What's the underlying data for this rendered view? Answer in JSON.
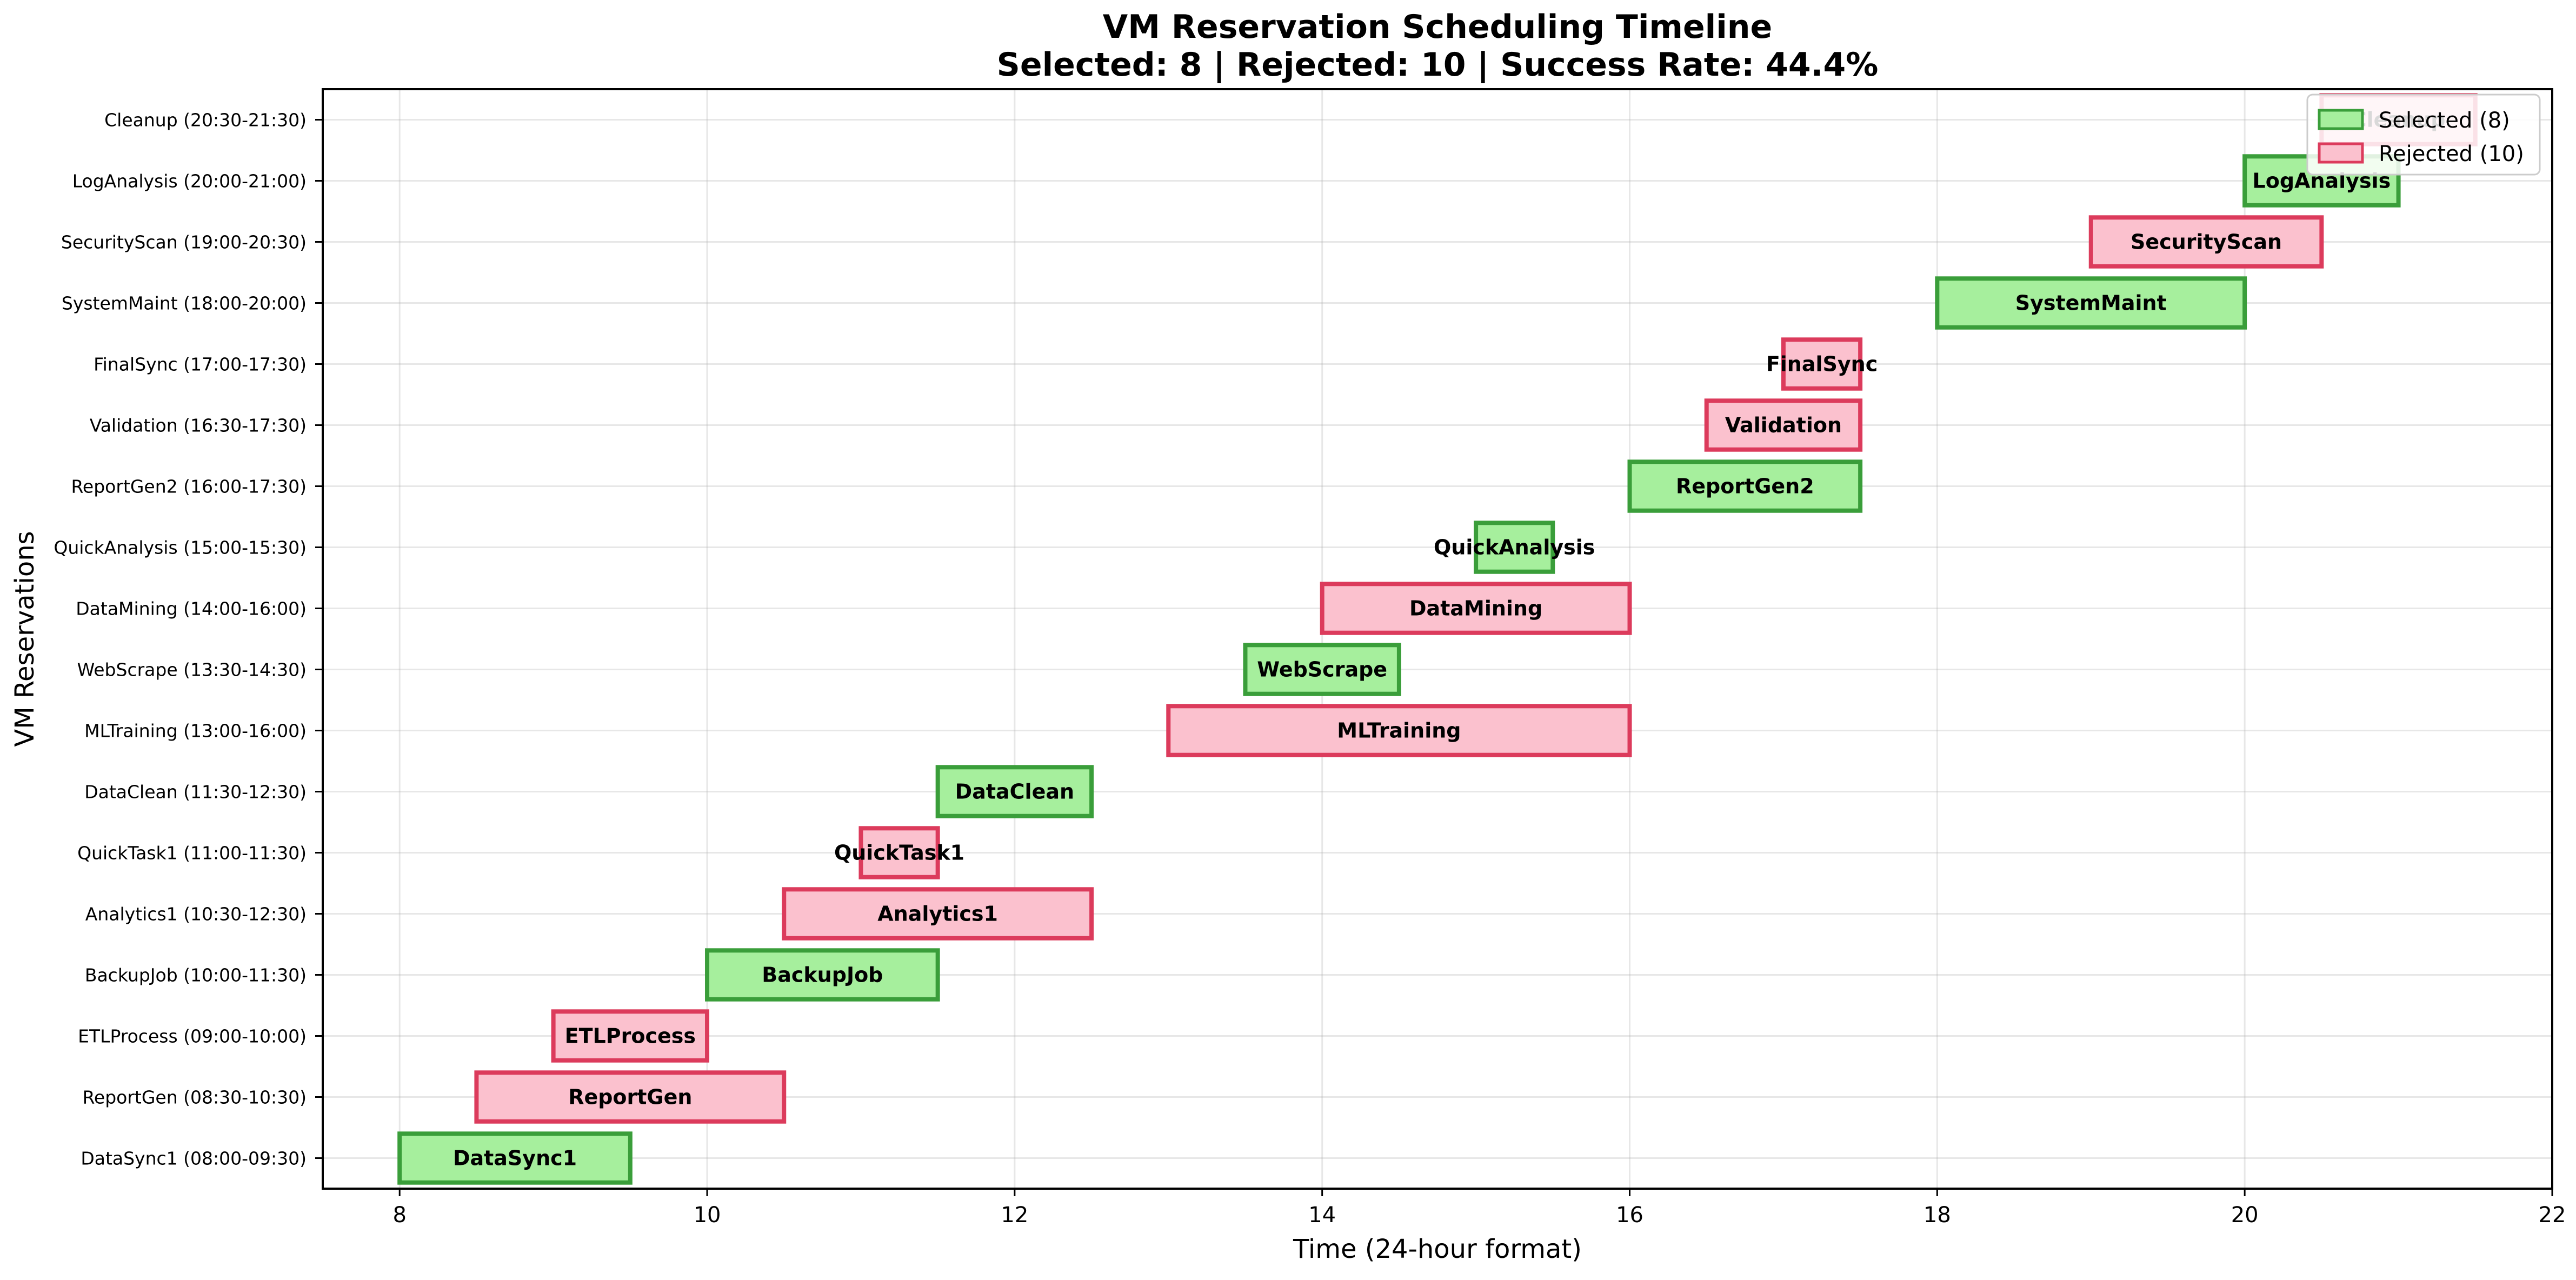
{
  "chart_data": {
    "type": "gantt",
    "title": "VM Reservation Scheduling Timeline",
    "subtitle": "Selected: 8 | Rejected: 10 | Success Rate: 44.4%",
    "xlabel": "Time (24-hour format)",
    "ylabel": "VM Reservations",
    "xlim": [
      7.5,
      22
    ],
    "xticks": [
      8,
      10,
      12,
      14,
      16,
      18,
      20,
      22
    ],
    "grid": true,
    "legend_position": "top-right",
    "legend": [
      {
        "label": "Selected (8)",
        "status": "selected"
      },
      {
        "label": "Rejected (10)",
        "status": "rejected"
      }
    ],
    "colors": {
      "selected_fill": "#a6ef9d",
      "selected_edge": "#3a9e3a",
      "rejected_fill": "#fbc1ce",
      "rejected_edge": "#dc3b5c"
    },
    "tasks": [
      {
        "name": "DataSync1",
        "label": "DataSync1 (08:00-09:30)",
        "start": 8.0,
        "end": 9.5,
        "status": "selected"
      },
      {
        "name": "ReportGen",
        "label": "ReportGen (08:30-10:30)",
        "start": 8.5,
        "end": 10.5,
        "status": "rejected"
      },
      {
        "name": "ETLProcess",
        "label": "ETLProcess (09:00-10:00)",
        "start": 9.0,
        "end": 10.0,
        "status": "rejected"
      },
      {
        "name": "BackupJob",
        "label": "BackupJob (10:00-11:30)",
        "start": 10.0,
        "end": 11.5,
        "status": "selected"
      },
      {
        "name": "Analytics1",
        "label": "Analytics1 (10:30-12:30)",
        "start": 10.5,
        "end": 12.5,
        "status": "rejected"
      },
      {
        "name": "QuickTask1",
        "label": "QuickTask1 (11:00-11:30)",
        "start": 11.0,
        "end": 11.5,
        "status": "rejected"
      },
      {
        "name": "DataClean",
        "label": "DataClean (11:30-12:30)",
        "start": 11.5,
        "end": 12.5,
        "status": "selected"
      },
      {
        "name": "MLTraining",
        "label": "MLTraining (13:00-16:00)",
        "start": 13.0,
        "end": 16.0,
        "status": "rejected"
      },
      {
        "name": "WebScrape",
        "label": "WebScrape (13:30-14:30)",
        "start": 13.5,
        "end": 14.5,
        "status": "selected"
      },
      {
        "name": "DataMining",
        "label": "DataMining (14:00-16:00)",
        "start": 14.0,
        "end": 16.0,
        "status": "rejected"
      },
      {
        "name": "QuickAnalysis",
        "label": "QuickAnalysis (15:00-15:30)",
        "start": 15.0,
        "end": 15.5,
        "status": "selected"
      },
      {
        "name": "ReportGen2",
        "label": "ReportGen2 (16:00-17:30)",
        "start": 16.0,
        "end": 17.5,
        "status": "selected"
      },
      {
        "name": "Validation",
        "label": "Validation (16:30-17:30)",
        "start": 16.5,
        "end": 17.5,
        "status": "rejected"
      },
      {
        "name": "FinalSync",
        "label": "FinalSync (17:00-17:30)",
        "start": 17.0,
        "end": 17.5,
        "status": "rejected"
      },
      {
        "name": "SystemMaint",
        "label": "SystemMaint (18:00-20:00)",
        "start": 18.0,
        "end": 20.0,
        "status": "selected"
      },
      {
        "name": "SecurityScan",
        "label": "SecurityScan (19:00-20:30)",
        "start": 19.0,
        "end": 20.5,
        "status": "rejected"
      },
      {
        "name": "LogAnalysis",
        "label": "LogAnalysis (20:00-21:00)",
        "start": 20.0,
        "end": 21.0,
        "status": "selected"
      },
      {
        "name": "Cleanup",
        "label": "Cleanup (20:30-21:30)",
        "start": 20.5,
        "end": 21.5,
        "status": "rejected"
      }
    ]
  }
}
